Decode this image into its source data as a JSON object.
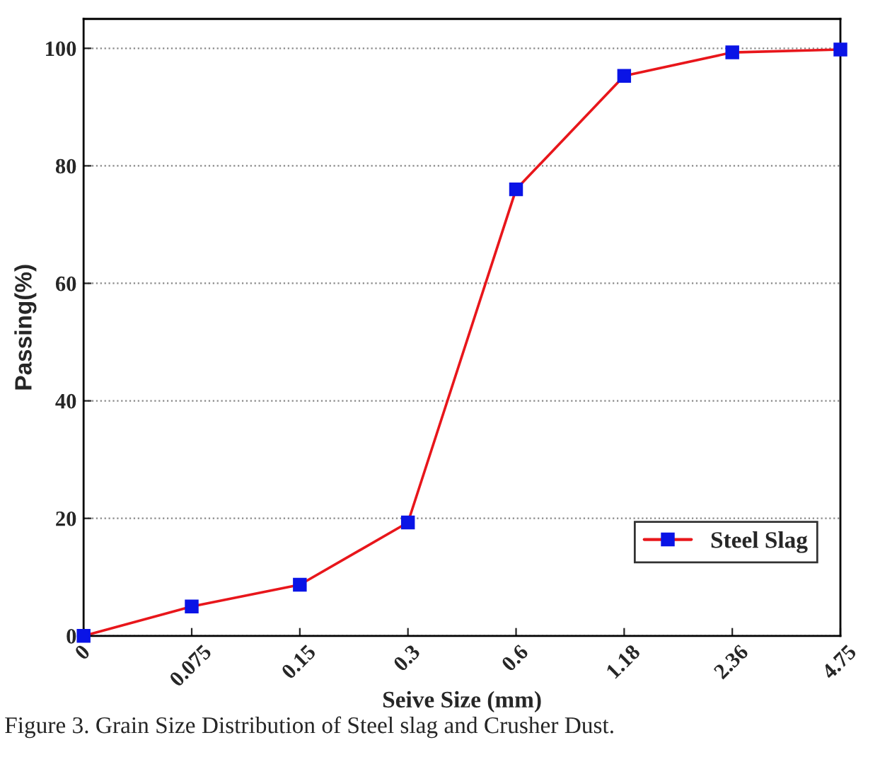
{
  "chart_data": {
    "type": "line",
    "xlabel": "Seive Size (mm)",
    "ylabel": "Passing(%)",
    "categories": [
      "0",
      "0.075",
      "0.15",
      "0.3",
      "0.6",
      "1.18",
      "2.36",
      "4.75"
    ],
    "series": [
      {
        "name": "Steel Slag",
        "color": "#e8161b",
        "values": [
          0,
          5,
          8.7,
          19.3,
          76,
          95.3,
          99.3,
          99.8
        ]
      }
    ],
    "ylim": [
      0,
      105
    ],
    "yticks": [
      0,
      20,
      40,
      60,
      80,
      100
    ],
    "grid": "y",
    "legend": "bottom right",
    "marker": "square",
    "line_style": "solid",
    "annotations": [
      "Figure 3. Grain Size Distribution of Steel slag and Crusher Dust."
    ]
  }
}
